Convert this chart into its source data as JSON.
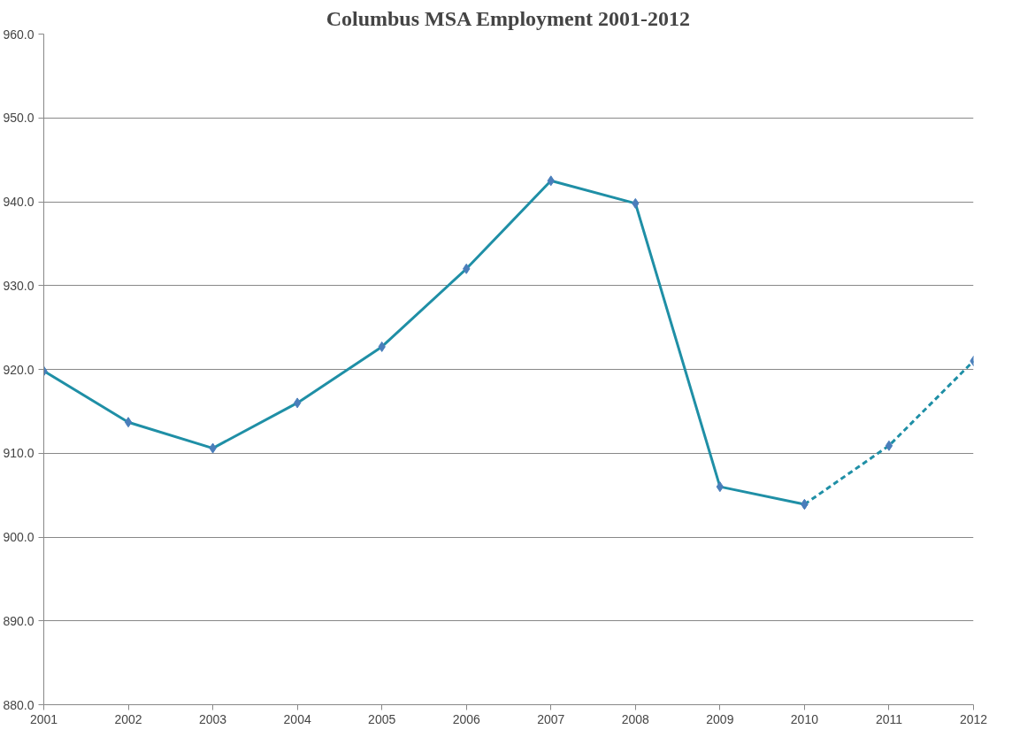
{
  "chart_data": {
    "type": "line",
    "title": "Columbus MSA Employment 2001-2012",
    "xlim": [
      2001,
      2012
    ],
    "xticks": [
      2001,
      2002,
      2003,
      2004,
      2005,
      2006,
      2007,
      2008,
      2009,
      2010,
      2011,
      2012
    ],
    "ylim": [
      880,
      960
    ],
    "yticks": [
      {
        "value": 880,
        "label": "880.0"
      },
      {
        "value": 890,
        "label": "890.0"
      },
      {
        "value": 900,
        "label": "900.0"
      },
      {
        "value": 910,
        "label": "910.0"
      },
      {
        "value": 920,
        "label": "920.0"
      },
      {
        "value": 930,
        "label": "930.0"
      },
      {
        "value": 940,
        "label": "940.0"
      },
      {
        "value": 950,
        "label": "950.0"
      },
      {
        "value": 960,
        "label": "960.0"
      }
    ],
    "grid": "y",
    "marker": "diamond",
    "series": [
      {
        "color": "#1f8fa6",
        "line_style": "solid",
        "x": [
          2001,
          2002,
          2003,
          2004,
          2005,
          2006,
          2007,
          2008,
          2009,
          2010
        ],
        "values": [
          919.8,
          913.7,
          910.6,
          916.0,
          922.7,
          932.0,
          942.5,
          939.8,
          906.0,
          903.9
        ]
      },
      {
        "color": "#1f8fa6",
        "line_style": "dashed",
        "x": [
          2010,
          2011,
          2012
        ],
        "values": [
          903.9,
          910.9,
          921.0
        ]
      }
    ]
  }
}
